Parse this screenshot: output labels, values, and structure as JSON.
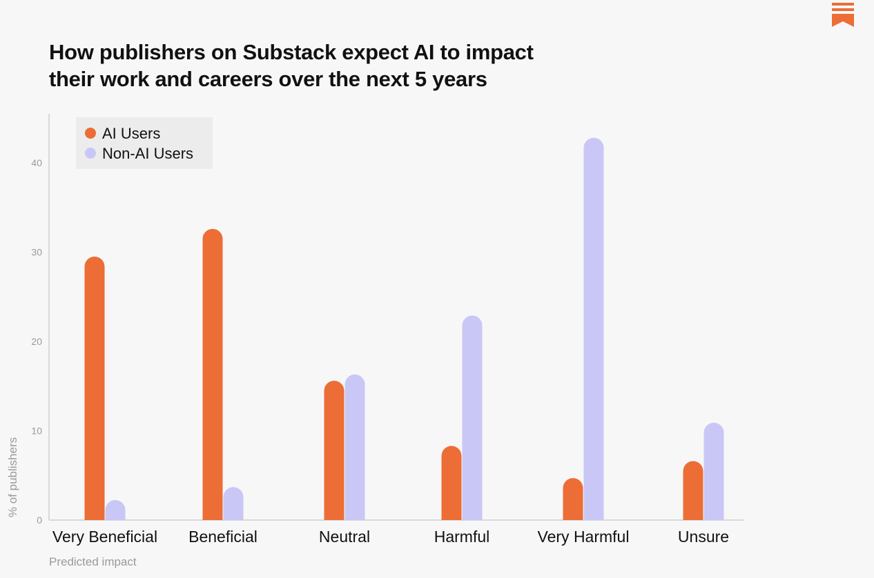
{
  "title_lines": [
    "How publishers on Substack expect AI to impact",
    "their work and careers over the next 5 years"
  ],
  "logo": {
    "icon": "substack-bookmark-icon",
    "color": "#ec6d35"
  },
  "colors": {
    "ai": "#ec6d35",
    "non_ai": "#c9c7f6",
    "axis": "#cfcfcf"
  },
  "chart_data": {
    "type": "bar",
    "categories": [
      "Very Beneficial",
      "Beneficial",
      "Neutral",
      "Harmful",
      "Very Harmful",
      "Unsure"
    ],
    "series": [
      {
        "name": "AI Users",
        "values": [
          29.5,
          32.6,
          15.6,
          8.3,
          4.7,
          6.6
        ]
      },
      {
        "name": "Non-AI Users",
        "values": [
          0.3,
          3.7,
          16.3,
          22.9,
          42.8,
          10.9
        ]
      }
    ],
    "xlabel": "Predicted impact",
    "ylabel": "% of publishers",
    "yticks": [
      0,
      10,
      20,
      30,
      40
    ],
    "ylim": [
      0,
      45
    ],
    "legend_position": "top-left",
    "grid": false
  }
}
